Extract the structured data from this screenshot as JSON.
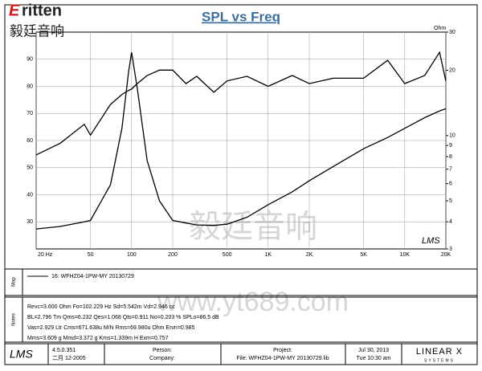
{
  "header": {
    "logo": "ritten",
    "logo_cn": "毅廷音响"
  },
  "chart_data": {
    "type": "line",
    "title": "SPL vs Freq",
    "y2label": "Ohm",
    "xscale": "log",
    "y2scale": "log",
    "grid": true,
    "x": [
      20,
      30,
      45,
      50,
      70,
      85,
      95,
      100,
      110,
      130,
      160,
      200,
      250,
      300,
      400,
      500,
      700,
      1000,
      1500,
      2000,
      3000,
      5000,
      7500,
      10000,
      14000,
      18000,
      20000
    ],
    "series": [
      {
        "color": "#000000",
        "values": [
          54.7,
          59,
          66,
          62,
          73.3,
          77,
          78.5,
          79,
          81,
          84,
          86,
          86,
          81,
          83.7,
          77.8,
          82,
          83.7,
          80,
          84,
          81,
          83,
          83,
          89.6,
          81,
          84,
          92.6,
          82
        ]
      },
      {
        "color": "#000000",
        "axis": "y2",
        "values": [
          3.71,
          3.81,
          4.0,
          4.06,
          5.93,
          10.8,
          19.6,
          24.2,
          16.5,
          7.66,
          5.0,
          4.06,
          3.95,
          3.87,
          3.85,
          3.9,
          4.2,
          4.8,
          5.5,
          6.19,
          7.2,
          8.7,
          9.8,
          10.8,
          12.1,
          13.0,
          13.3
        ]
      }
    ],
    "xlim": [
      20,
      20000
    ],
    "xticks": [
      {
        "value": 20,
        "label": "20 Hz"
      },
      50,
      100,
      200,
      500,
      {
        "value": 1000,
        "label": "1K"
      },
      {
        "value": 2000,
        "label": "2K"
      },
      {
        "value": 5000,
        "label": "5K"
      },
      {
        "value": 10000,
        "label": "10K"
      },
      {
        "value": 20000,
        "label": "20K"
      }
    ],
    "ylim": [
      20,
      100
    ],
    "yticks": [
      30,
      40,
      50,
      60,
      70,
      80,
      90
    ],
    "y2lim": [
      3,
      30
    ],
    "y2ticks": [
      3,
      4,
      5,
      6,
      7,
      8,
      9,
      10,
      20,
      30
    ],
    "plot_mark": "LMS"
  },
  "watermark": {
    "cn": "毅廷音响",
    "url": "www.yt689.com"
  },
  "panel": {
    "map_label": "Map",
    "map_entry": "16: WFHZ04-1PW-MY  20130729",
    "notes_label": "Notes",
    "notes": [
      "Revc=3.600 Ohm  Fo=102.229 Hz  Sd=5.542m  Vd=2.946 cc",
      "BL=2.796 Tm  Qms=6.232  Qes=1.068  Qts=0.911  No=0.203 %  SPLo=86.5 dB",
      "Vas=2.929 Ltr  Cms=671.638u M/N  Rms=69.980u Ohm  Ervn=0.985",
      "Mms=3.609 g  Mmd=3.372 g  Kms=1.339m H  Exm=0.757"
    ]
  },
  "footer": {
    "logo": "LMS",
    "version": "4.5.0.351",
    "build": "二月 12-2005",
    "person": "Person:",
    "company": "Company:",
    "project": "Project:",
    "file": "File: WFHZ04-1PW-MY 20130729.lib",
    "date": "Jul 30, 2013",
    "time": "Tue 10:30 am",
    "brand": "LINEAR X",
    "brand_sub": "SYSTEMS"
  }
}
